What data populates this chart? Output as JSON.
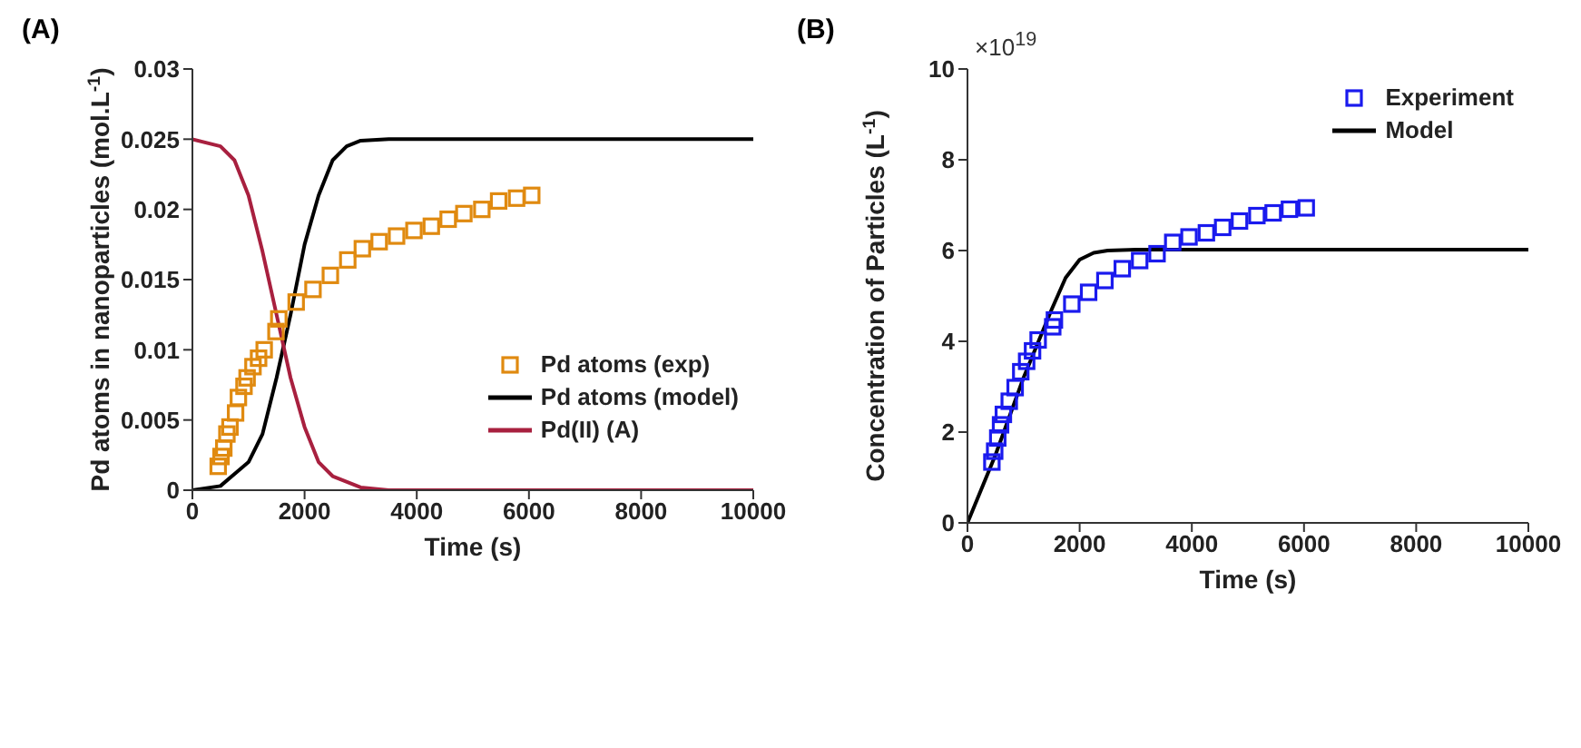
{
  "chart_data": [
    {
      "type": "line",
      "title": "(A)",
      "xlabel": "Time (s)",
      "ylabel": "Pd atoms in nanoparticles (mol.L$^{-1}$)",
      "xlim": [
        0,
        10000
      ],
      "xticks": [
        0,
        2000,
        4000,
        6000,
        8000,
        10000
      ],
      "ylim": [
        0,
        0.03
      ],
      "yticks": [
        0,
        0.005,
        0.01,
        0.015,
        0.02,
        0.025,
        0.03
      ],
      "grid": false,
      "legend": "right",
      "series": [
        {
          "name": "Pd atoms (exp)",
          "type": "scatter",
          "marker": "square",
          "color": "#e08a10",
          "x": [
            460,
            510,
            560,
            615,
            670,
            770,
            820,
            920,
            975,
            1080,
            1180,
            1280,
            1490,
            1540,
            1850,
            2150,
            2460,
            2770,
            3030,
            3330,
            3640,
            3950,
            4260,
            4560,
            4840,
            5160,
            5460,
            5780,
            6050
          ],
          "values": [
            0.0017,
            0.0024,
            0.003,
            0.004,
            0.0045,
            0.0055,
            0.0066,
            0.0074,
            0.008,
            0.0088,
            0.0094,
            0.01,
            0.0113,
            0.0122,
            0.0134,
            0.0143,
            0.0153,
            0.0164,
            0.0172,
            0.0177,
            0.0181,
            0.0185,
            0.0188,
            0.0193,
            0.0197,
            0.02,
            0.0206,
            0.0208,
            0.021
          ]
        },
        {
          "name": "Pd atoms (model)",
          "color": "#000000",
          "x": [
            0,
            500,
            1000,
            1250,
            1500,
            1750,
            2000,
            2250,
            2500,
            2750,
            3000,
            3500,
            10000
          ],
          "values": [
            0,
            0.0003,
            0.002,
            0.004,
            0.008,
            0.0125,
            0.0175,
            0.021,
            0.0235,
            0.0245,
            0.0249,
            0.025,
            0.025
          ]
        },
        {
          "name": "Pd(II) (A)",
          "color": "#a8203f",
          "x": [
            0,
            500,
            750,
            1000,
            1250,
            1500,
            1750,
            2000,
            2250,
            2500,
            3000,
            3500,
            10000
          ],
          "values": [
            0.025,
            0.0245,
            0.0235,
            0.021,
            0.017,
            0.0125,
            0.008,
            0.0045,
            0.002,
            0.001,
            0.0002,
            0,
            0
          ]
        }
      ]
    },
    {
      "type": "line",
      "title": "(B)",
      "xlabel": "Time (s)",
      "ylabel": "Concentration of Particles (L$^{-1}$)",
      "annotations": [
        "×10$^{19}$"
      ],
      "xlim": [
        0,
        10000
      ],
      "xticks": [
        0,
        2000,
        4000,
        6000,
        8000,
        10000
      ],
      "ylim": [
        0,
        10
      ],
      "yticks": [
        0,
        2,
        4,
        6,
        8,
        10
      ],
      "grid": false,
      "legend": "top right",
      "series": [
        {
          "name": "Experiment",
          "type": "scatter",
          "marker": "square",
          "color": "#1a1aee",
          "x": [
            435,
            485,
            540,
            590,
            640,
            745,
            850,
            950,
            1055,
            1160,
            1260,
            1520,
            1550,
            1860,
            2160,
            2450,
            2760,
            3070,
            3380,
            3660,
            3950,
            4260,
            4550,
            4850,
            5160,
            5450,
            5740,
            6040
          ],
          "values": [
            1.34,
            1.58,
            1.87,
            2.16,
            2.39,
            2.68,
            2.98,
            3.33,
            3.56,
            3.79,
            4.03,
            4.32,
            4.47,
            4.82,
            5.08,
            5.34,
            5.6,
            5.78,
            5.93,
            6.18,
            6.3,
            6.39,
            6.51,
            6.65,
            6.77,
            6.83,
            6.91,
            6.94
          ]
        },
        {
          "name": "Model",
          "color": "#000000",
          "x": [
            0,
            500,
            1000,
            1500,
            1750,
            2000,
            2250,
            2500,
            3000,
            10000
          ],
          "values": [
            0,
            1.5,
            3.2,
            4.7,
            5.4,
            5.8,
            5.95,
            6.0,
            6.02,
            6.02
          ]
        }
      ]
    }
  ]
}
